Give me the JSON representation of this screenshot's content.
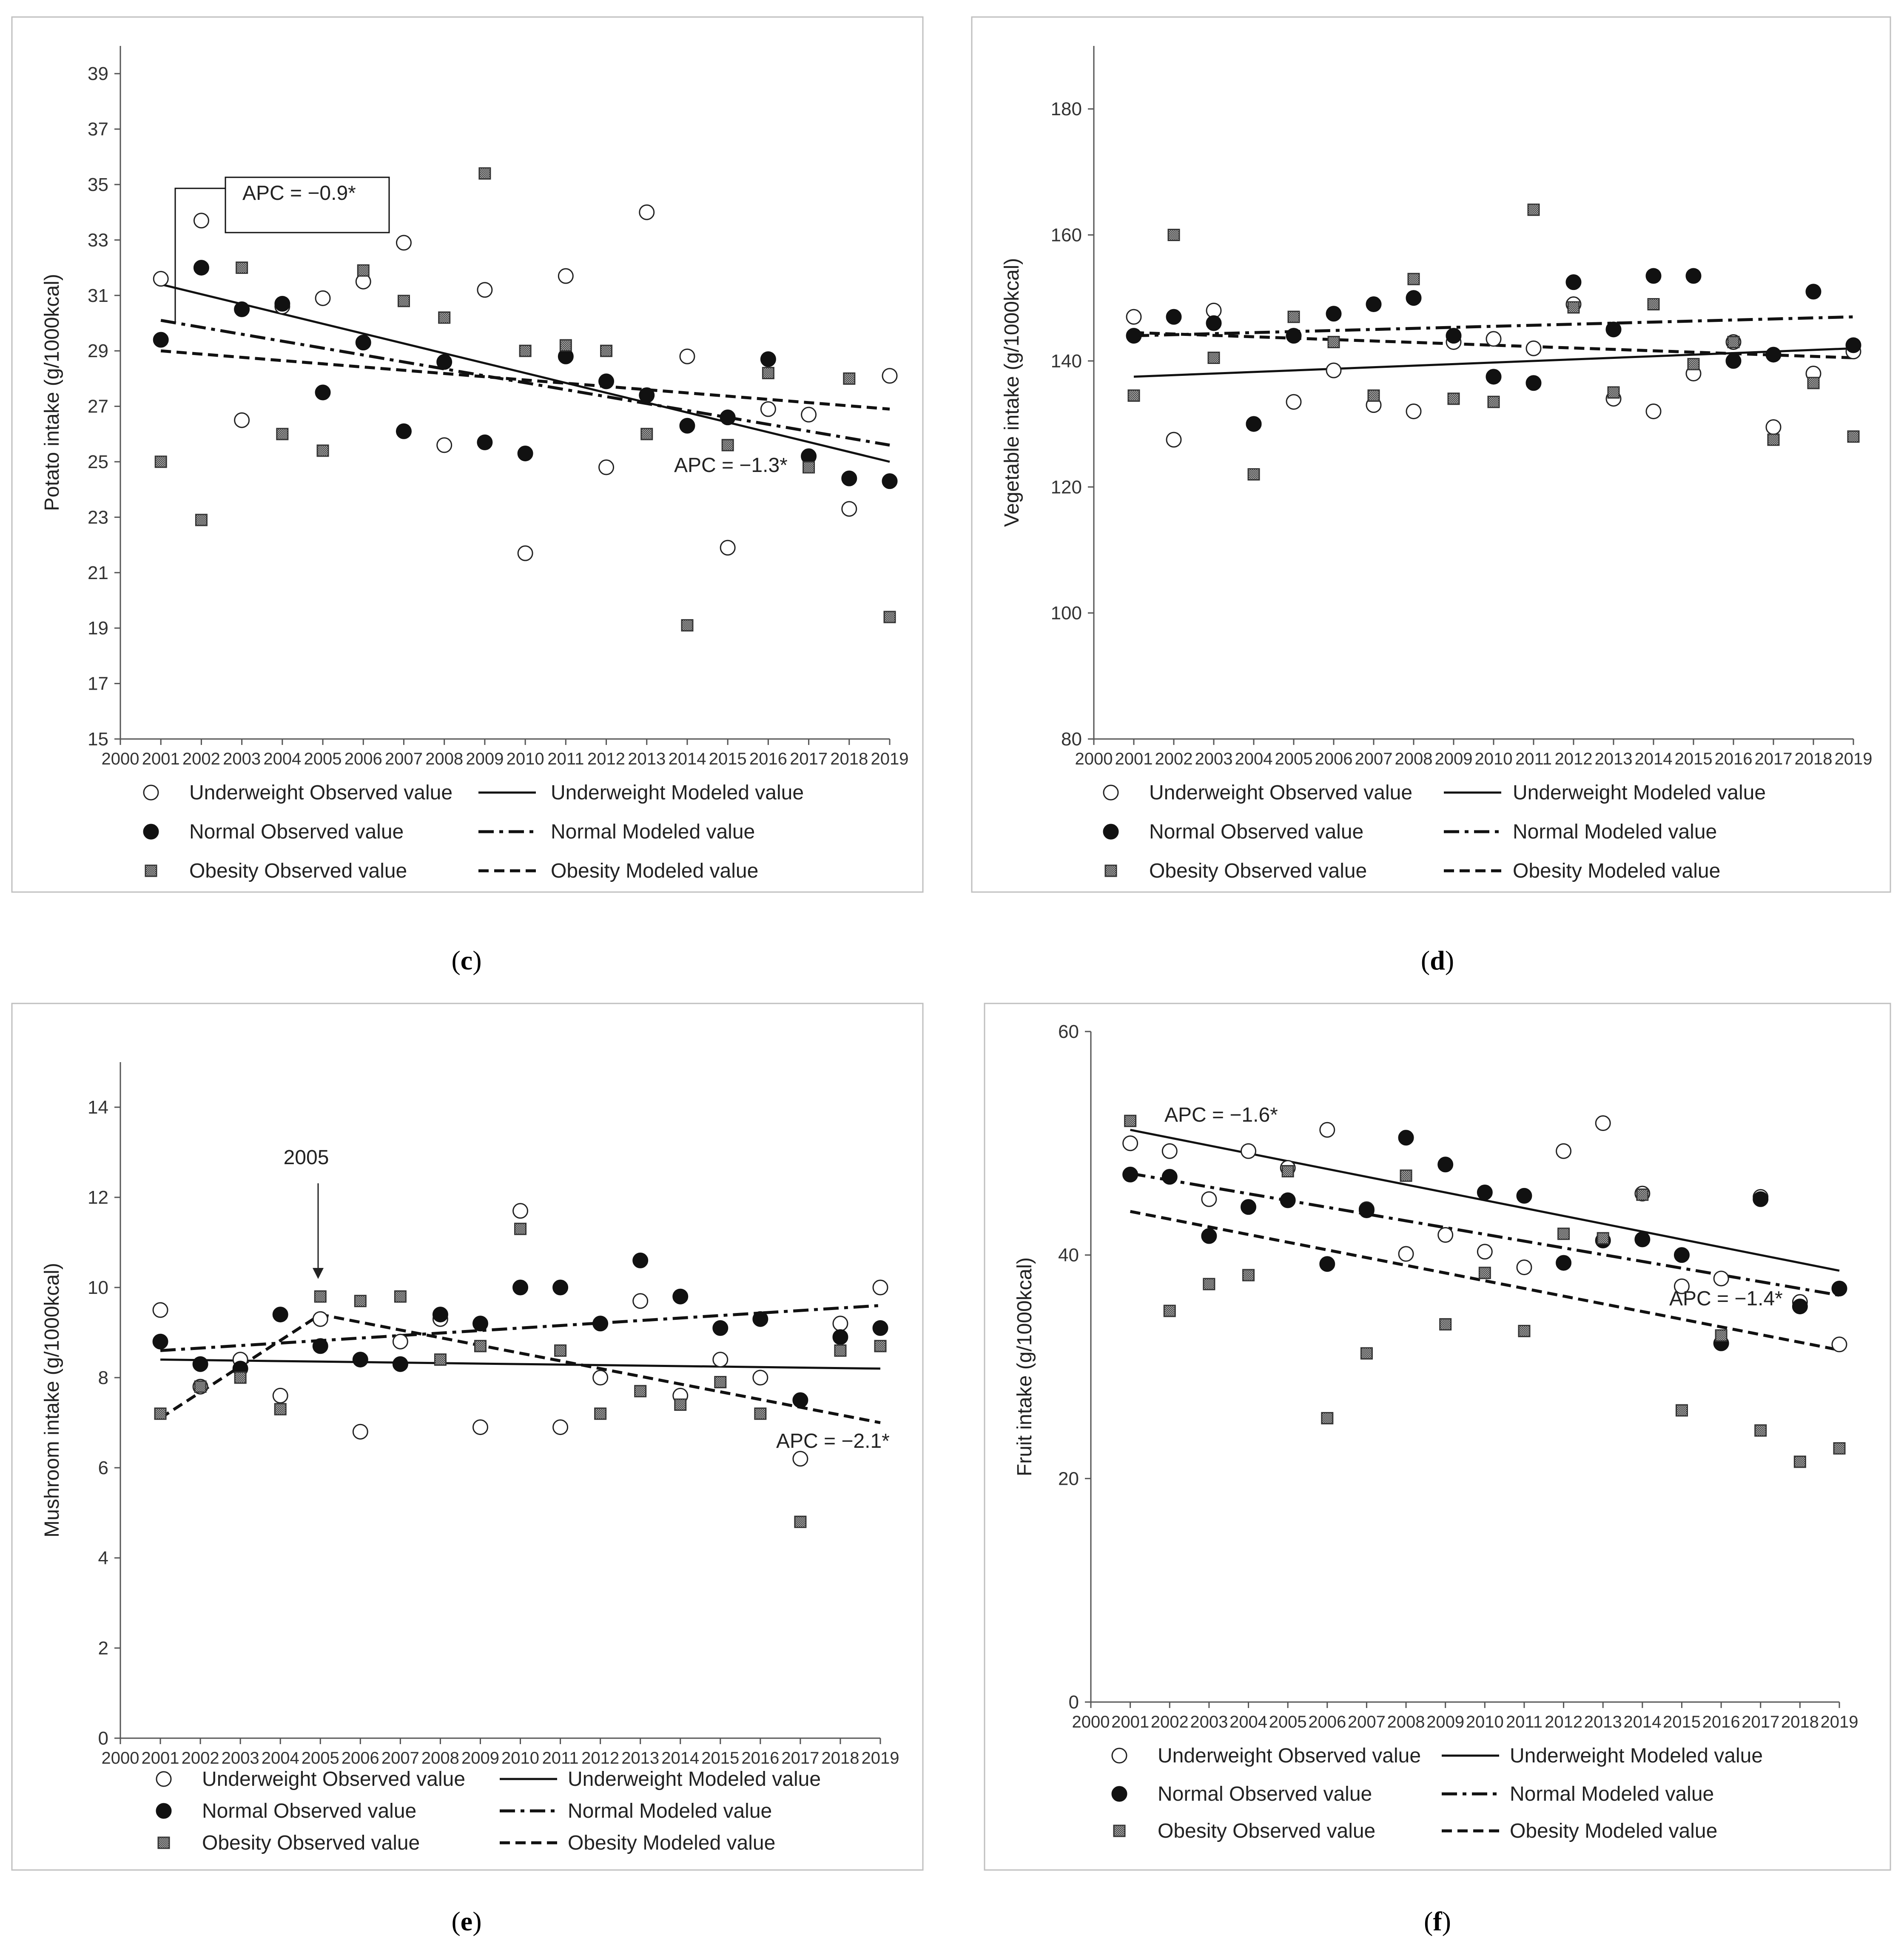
{
  "figure": {
    "legend_entries": {
      "uw_obs": "Underweight Observed value",
      "uw_mod": "Underweight Modeled value",
      "nm_obs": "Normal Observed value",
      "nm_mod": "Normal Modeled value",
      "ob_obs": "Obesity Observed value",
      "ob_mod": "Obesity Modeled value"
    }
  },
  "chart_data": [
    {
      "id": "c",
      "type": "scatter",
      "caption": "c",
      "ylabel": "Potato intake (g/1000kcal)",
      "xlim": [
        2000,
        2019
      ],
      "ylim": [
        15,
        40
      ],
      "yticks": [
        15,
        17,
        19,
        21,
        23,
        25,
        27,
        29,
        31,
        33,
        35,
        37,
        39
      ],
      "x": [
        2001,
        2002,
        2003,
        2004,
        2005,
        2006,
        2007,
        2008,
        2009,
        2010,
        2011,
        2012,
        2013,
        2014,
        2015,
        2016,
        2017,
        2018,
        2019
      ],
      "series": [
        {
          "name": "Underweight Observed value",
          "values": [
            31.6,
            33.7,
            26.5,
            30.6,
            30.9,
            31.5,
            32.9,
            25.6,
            31.2,
            21.7,
            31.7,
            24.8,
            34.0,
            28.8,
            21.9,
            26.9,
            26.7,
            23.3,
            28.1
          ]
        },
        {
          "name": "Normal Observed value",
          "values": [
            29.4,
            32.0,
            30.5,
            30.7,
            27.5,
            29.3,
            26.1,
            28.6,
            25.7,
            25.3,
            28.8,
            27.9,
            27.4,
            26.3,
            26.6,
            28.7,
            25.2,
            24.4,
            24.3
          ]
        },
        {
          "name": "Obesity Observed value",
          "values": [
            25.0,
            22.9,
            32.0,
            26.0,
            25.4,
            31.9,
            30.8,
            30.2,
            35.4,
            29.0,
            29.2,
            29.0,
            26.0,
            19.1,
            25.6,
            28.2,
            24.8,
            28.0,
            19.4
          ]
        },
        {
          "name": "Underweight Modeled value",
          "values": [
            31.4,
            25.0
          ]
        },
        {
          "name": "Normal Modeled value",
          "values": [
            30.1,
            25.6
          ]
        },
        {
          "name": "Obesity Modeled value",
          "values": [
            29.0,
            26.9
          ]
        }
      ],
      "annotations": [
        {
          "text": "APC = −0.9*"
        },
        {
          "text": "APC = −1.3*"
        }
      ]
    },
    {
      "id": "d",
      "type": "scatter",
      "caption": "d",
      "ylabel": "Vegetable intake (g/1000kcal)",
      "xlim": [
        2000,
        2019
      ],
      "ylim": [
        80,
        190
      ],
      "yticks": [
        80,
        100,
        120,
        140,
        160,
        180
      ],
      "x": [
        2001,
        2002,
        2003,
        2004,
        2005,
        2006,
        2007,
        2008,
        2009,
        2010,
        2011,
        2012,
        2013,
        2014,
        2015,
        2016,
        2017,
        2018,
        2019
      ],
      "series": [
        {
          "name": "Underweight Observed value",
          "values": [
            147,
            127.5,
            148,
            130,
            133.5,
            138.5,
            133,
            132,
            143,
            143.5,
            142,
            149,
            134,
            132,
            138,
            143,
            129.5,
            138,
            141.5
          ]
        },
        {
          "name": "Normal Observed value",
          "values": [
            144,
            147,
            146,
            130,
            144,
            147.5,
            149,
            150,
            144,
            137.5,
            136.5,
            152.5,
            145,
            153.5,
            153.5,
            140,
            141,
            151,
            142.5
          ]
        },
        {
          "name": "Obesity Observed value",
          "values": [
            134.5,
            160,
            140.5,
            122,
            147,
            143,
            134.5,
            153,
            134,
            133.5,
            164,
            148.5,
            135,
            149,
            139.5,
            143,
            127.5,
            136.5,
            128
          ]
        },
        {
          "name": "Underweight Modeled value",
          "values": [
            137.5,
            142
          ]
        },
        {
          "name": "Normal Modeled value",
          "values": [
            144,
            147
          ]
        },
        {
          "name": "Obesity Modeled value",
          "values": [
            144.5,
            140.5
          ]
        }
      ],
      "annotations": []
    },
    {
      "id": "e",
      "type": "scatter",
      "caption": "e",
      "ylabel": "Mushroom intake (g/1000kcal)",
      "xlim": [
        2000,
        2019
      ],
      "ylim": [
        0,
        15
      ],
      "yticks": [
        0,
        2,
        4,
        6,
        8,
        10,
        12,
        14
      ],
      "x": [
        2001,
        2002,
        2003,
        2004,
        2005,
        2006,
        2007,
        2008,
        2009,
        2010,
        2011,
        2012,
        2013,
        2014,
        2015,
        2016,
        2017,
        2018,
        2019
      ],
      "series": [
        {
          "name": "Underweight Observed value",
          "values": [
            9.5,
            7.8,
            8.4,
            7.6,
            9.3,
            6.8,
            8.8,
            9.3,
            6.9,
            11.7,
            6.9,
            8.0,
            9.7,
            7.6,
            8.4,
            8.0,
            6.2,
            9.2,
            10.0
          ]
        },
        {
          "name": "Normal Observed value",
          "values": [
            8.8,
            8.3,
            8.2,
            9.4,
            8.7,
            8.4,
            8.3,
            9.4,
            9.2,
            10.0,
            10.0,
            9.2,
            10.6,
            9.8,
            9.1,
            9.3,
            7.5,
            8.9,
            9.1
          ]
        },
        {
          "name": "Obesity Observed value",
          "values": [
            7.2,
            7.8,
            8.0,
            7.3,
            9.8,
            9.7,
            9.8,
            8.4,
            8.7,
            11.3,
            8.6,
            7.2,
            7.7,
            7.4,
            7.9,
            7.2,
            4.8,
            8.6,
            8.7
          ]
        },
        {
          "name": "Underweight Modeled value",
          "values": [
            8.4,
            8.2
          ]
        },
        {
          "name": "Normal Modeled value",
          "values": [
            8.6,
            9.6
          ]
        },
        {
          "name": "Obesity Modeled value",
          "values": [
            7.1,
            9.4,
            7.0
          ]
        }
      ],
      "annotations": [
        {
          "text": "2005"
        },
        {
          "text": "APC = −2.1*"
        }
      ]
    },
    {
      "id": "f",
      "type": "scatter",
      "caption": "f",
      "ylabel": "Fruit intake (g/1000kcal)",
      "xlim": [
        2000,
        2019
      ],
      "ylim": [
        0,
        60
      ],
      "yticks": [
        0,
        20,
        40,
        60
      ],
      "x": [
        2001,
        2002,
        2003,
        2004,
        2005,
        2006,
        2007,
        2008,
        2009,
        2010,
        2011,
        2012,
        2013,
        2014,
        2015,
        2016,
        2017,
        2018,
        2019
      ],
      "series": [
        {
          "name": "Underweight Observed value",
          "values": [
            50.0,
            49.3,
            45.0,
            49.3,
            47.8,
            51.2,
            44.1,
            40.1,
            41.8,
            40.3,
            38.9,
            49.3,
            51.8,
            45.5,
            37.2,
            37.9,
            45.2,
            35.8,
            32.0
          ]
        },
        {
          "name": "Normal Observed value",
          "values": [
            47.2,
            47.0,
            41.7,
            44.3,
            44.9,
            39.2,
            44.0,
            50.5,
            48.1,
            45.6,
            45.3,
            39.3,
            41.3,
            41.4,
            40.0,
            32.1,
            45.0,
            35.4,
            37.0
          ]
        },
        {
          "name": "Obesity Observed value",
          "values": [
            52.0,
            35.0,
            37.4,
            38.2,
            47.5,
            25.4,
            31.2,
            47.1,
            33.8,
            38.4,
            33.2,
            41.9,
            41.5,
            45.4,
            26.1,
            32.8,
            24.3,
            21.5,
            22.7
          ]
        },
        {
          "name": "Underweight Modeled value",
          "values": [
            51.2,
            38.6
          ]
        },
        {
          "name": "Normal Modeled value",
          "values": [
            47.3,
            36.4
          ]
        },
        {
          "name": "Obesity Modeled value",
          "values": [
            43.9,
            31.5
          ]
        }
      ],
      "annotations": [
        {
          "text": "APC = −1.6*"
        },
        {
          "text": "APC = −1.4*"
        }
      ]
    }
  ]
}
